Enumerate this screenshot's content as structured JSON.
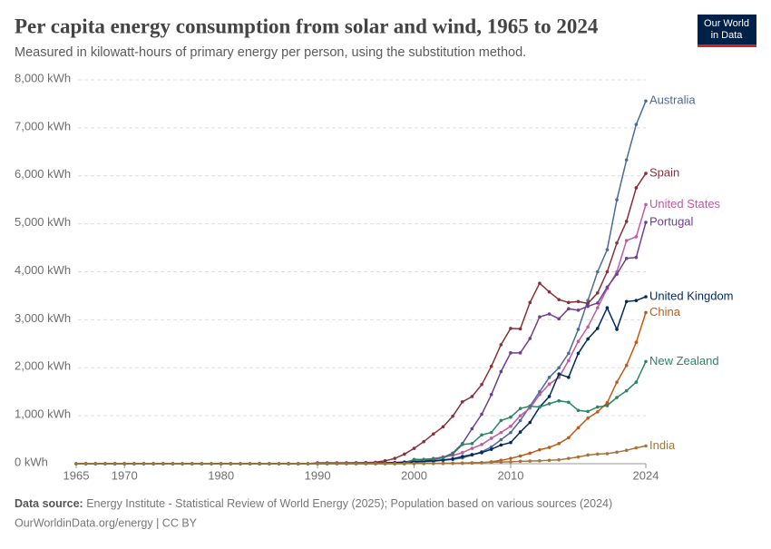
{
  "chart_data": {
    "type": "line",
    "title": "Per capita energy consumption from solar and wind, 1965 to 2024",
    "subtitle": "Measured in kilowatt-hours of primary energy per person, using the substitution method.",
    "source_label": "Data source:",
    "source": "Energy Institute - Statistical Review of World Energy (2025); Population based on various sources (2024)",
    "footer": "OurWorldinData.org/energy | CC BY",
    "logo": [
      "Our World",
      "in Data"
    ],
    "x": [
      1965,
      1966,
      1967,
      1968,
      1969,
      1970,
      1971,
      1972,
      1973,
      1974,
      1975,
      1976,
      1977,
      1978,
      1979,
      1980,
      1981,
      1982,
      1983,
      1984,
      1985,
      1986,
      1987,
      1988,
      1989,
      1990,
      1991,
      1992,
      1993,
      1994,
      1995,
      1996,
      1997,
      1998,
      1999,
      2000,
      2001,
      2002,
      2003,
      2004,
      2005,
      2006,
      2007,
      2008,
      2009,
      2010,
      2011,
      2012,
      2013,
      2014,
      2015,
      2016,
      2017,
      2018,
      2019,
      2020,
      2021,
      2022,
      2023,
      2024
    ],
    "xlim": [
      1965,
      2024
    ],
    "xticks": [
      1965,
      1970,
      1980,
      1990,
      2000,
      2010,
      2024
    ],
    "ylim": [
      0,
      8000
    ],
    "yticks": [
      {
        "value": 0,
        "label": "0 kWh"
      },
      {
        "value": 1000,
        "label": "1,000 kWh"
      },
      {
        "value": 2000,
        "label": "2,000 kWh"
      },
      {
        "value": 3000,
        "label": "3,000 kWh"
      },
      {
        "value": 4000,
        "label": "4,000 kWh"
      },
      {
        "value": 5000,
        "label": "5,000 kWh"
      },
      {
        "value": 6000,
        "label": "6,000 kWh"
      },
      {
        "value": 7000,
        "label": "7,000 kWh"
      },
      {
        "value": 8000,
        "label": "8,000 kWh"
      }
    ],
    "grid": true,
    "series": [
      {
        "name": "Australia",
        "color": "#4c6a9c",
        "values": [
          0,
          0,
          0,
          0,
          0,
          0,
          0,
          0,
          0,
          0,
          0,
          0,
          0,
          0,
          0,
          0,
          0,
          0,
          0,
          0,
          0,
          0,
          0,
          0,
          0,
          10,
          10,
          10,
          10,
          10,
          10,
          10,
          10,
          15,
          20,
          30,
          40,
          50,
          70,
          90,
          120,
          180,
          250,
          350,
          500,
          650,
          900,
          1200,
          1500,
          1800,
          2000,
          2300,
          2800,
          3400,
          4000,
          4460,
          5500,
          6330,
          7070,
          7560
        ]
      },
      {
        "name": "Spain",
        "color": "#883039",
        "values": [
          0,
          0,
          0,
          0,
          0,
          0,
          0,
          0,
          0,
          0,
          0,
          0,
          0,
          0,
          0,
          0,
          0,
          0,
          0,
          0,
          0,
          0,
          0,
          0,
          0,
          10,
          12,
          15,
          18,
          20,
          25,
          30,
          60,
          110,
          200,
          320,
          460,
          620,
          770,
          990,
          1290,
          1400,
          1650,
          2030,
          2480,
          2820,
          2810,
          3360,
          3760,
          3580,
          3420,
          3360,
          3380,
          3340,
          3560,
          4000,
          4600,
          5050,
          5750,
          6050
        ]
      },
      {
        "name": "United States",
        "color": "#c05aa3",
        "values": [
          0,
          0,
          0,
          0,
          0,
          0,
          0,
          0,
          0,
          0,
          0,
          0,
          0,
          0,
          0,
          0,
          0,
          0,
          0,
          0,
          0,
          0,
          0,
          0,
          0,
          20,
          20,
          20,
          20,
          20,
          20,
          20,
          20,
          25,
          30,
          80,
          90,
          110,
          140,
          170,
          230,
          320,
          400,
          530,
          650,
          780,
          1000,
          1160,
          1440,
          1660,
          1800,
          2150,
          2550,
          2850,
          3250,
          3650,
          4000,
          4650,
          4730,
          5400
        ]
      },
      {
        "name": "Portugal",
        "color": "#6d3e91",
        "values": [
          0,
          0,
          0,
          0,
          0,
          0,
          0,
          0,
          0,
          0,
          0,
          0,
          0,
          0,
          0,
          0,
          0,
          0,
          0,
          0,
          0,
          0,
          0,
          0,
          0,
          10,
          10,
          10,
          10,
          10,
          10,
          15,
          20,
          25,
          35,
          50,
          60,
          90,
          130,
          220,
          420,
          730,
          1030,
          1440,
          1920,
          2310,
          2310,
          2610,
          3060,
          3120,
          3020,
          3230,
          3200,
          3280,
          3350,
          3680,
          3950,
          4280,
          4300,
          5030
        ]
      },
      {
        "name": "United Kingdom",
        "color": "#00295b",
        "values": [
          0,
          0,
          0,
          0,
          0,
          0,
          0,
          0,
          0,
          0,
          0,
          0,
          0,
          0,
          0,
          0,
          0,
          0,
          0,
          0,
          0,
          0,
          0,
          0,
          0,
          0,
          2,
          3,
          5,
          8,
          10,
          12,
          15,
          20,
          30,
          40,
          50,
          60,
          80,
          100,
          150,
          190,
          230,
          300,
          390,
          440,
          660,
          860,
          1180,
          1400,
          1870,
          1800,
          2300,
          2600,
          2820,
          3250,
          2800,
          3380,
          3400,
          3480
        ]
      },
      {
        "name": "China",
        "color": "#c05917",
        "values": [
          0,
          0,
          0,
          0,
          0,
          0,
          0,
          0,
          0,
          0,
          0,
          0,
          0,
          0,
          0,
          0,
          0,
          0,
          0,
          0,
          0,
          0,
          0,
          0,
          0,
          0,
          0,
          0,
          0,
          0,
          0,
          0,
          0,
          1,
          1,
          2,
          3,
          4,
          5,
          6,
          8,
          12,
          20,
          40,
          70,
          110,
          160,
          220,
          290,
          340,
          420,
          540,
          750,
          950,
          1080,
          1270,
          1700,
          2050,
          2530,
          3150
        ]
      },
      {
        "name": "New Zealand",
        "color": "#2c8465",
        "values": [
          0,
          0,
          0,
          0,
          0,
          0,
          0,
          0,
          0,
          0,
          0,
          0,
          0,
          0,
          0,
          0,
          0,
          0,
          0,
          0,
          0,
          0,
          0,
          0,
          0,
          0,
          0,
          0,
          0,
          0,
          0,
          0,
          0,
          0,
          0,
          90,
          90,
          100,
          120,
          200,
          400,
          420,
          600,
          650,
          900,
          970,
          1150,
          1200,
          1180,
          1250,
          1310,
          1280,
          1110,
          1090,
          1180,
          1210,
          1380,
          1520,
          1700,
          2130
        ]
      },
      {
        "name": "India",
        "color": "#a2763b",
        "values": [
          0,
          0,
          0,
          0,
          0,
          0,
          0,
          0,
          0,
          0,
          0,
          0,
          0,
          0,
          0,
          0,
          0,
          0,
          0,
          0,
          0,
          0,
          0,
          0,
          0,
          0,
          0,
          0,
          1,
          1,
          2,
          2,
          3,
          3,
          4,
          5,
          6,
          7,
          9,
          12,
          15,
          20,
          25,
          30,
          35,
          40,
          50,
          55,
          60,
          70,
          80,
          110,
          140,
          180,
          200,
          210,
          240,
          280,
          330,
          370
        ]
      }
    ]
  }
}
